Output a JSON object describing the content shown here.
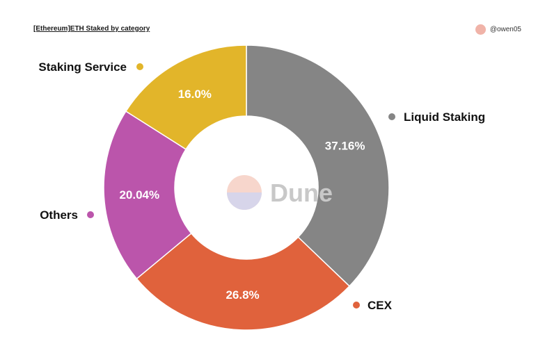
{
  "header": {
    "title": "[Ethereum]ETH Staked by category",
    "author": "@owen05"
  },
  "watermark": "Dune",
  "colors": {
    "Liquid Staking": "#858585",
    "CEX": "#e0623c",
    "Others": "#bb55ab",
    "Staking Service": "#e2b52a"
  },
  "chart_data": {
    "type": "pie",
    "title": "[Ethereum]ETH Staked by category",
    "donut": true,
    "categories": [
      "Liquid Staking",
      "CEX",
      "Others",
      "Staking Service"
    ],
    "values": [
      37.16,
      26.8,
      20.04,
      16.0
    ],
    "value_labels": [
      "37.16%",
      "26.8%",
      "20.04%",
      "16.0%"
    ],
    "legend": "labels outside each slice"
  }
}
